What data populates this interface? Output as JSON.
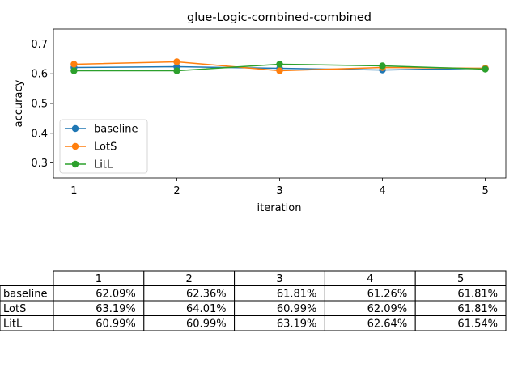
{
  "chart_data": {
    "type": "line",
    "title": "glue-Logic-combined-combined",
    "xlabel": "iteration",
    "ylabel": "accuracy",
    "x": [
      1,
      2,
      3,
      4,
      5
    ],
    "xticks": [
      "1",
      "2",
      "3",
      "4",
      "5"
    ],
    "ylim": [
      0.25,
      0.75
    ],
    "yticks": [
      "0.3",
      "0.4",
      "0.5",
      "0.6",
      "0.7"
    ],
    "grid": false,
    "legend_position": "center-left",
    "series": [
      {
        "name": "baseline",
        "color": "#1f77b4",
        "values": [
          0.6209,
          0.6236,
          0.6181,
          0.6126,
          0.6181
        ]
      },
      {
        "name": "LotS",
        "color": "#ff7f0e",
        "values": [
          0.6319,
          0.6401,
          0.6099,
          0.6209,
          0.6181
        ]
      },
      {
        "name": "LitL",
        "color": "#2ca02c",
        "values": [
          0.6099,
          0.6099,
          0.6319,
          0.6264,
          0.6154
        ]
      }
    ],
    "table": {
      "columns": [
        "1",
        "2",
        "3",
        "4",
        "5"
      ],
      "rows": [
        {
          "label": "baseline",
          "cells": [
            "62.09%",
            "62.36%",
            "61.81%",
            "61.26%",
            "61.81%"
          ]
        },
        {
          "label": "LotS",
          "cells": [
            "63.19%",
            "64.01%",
            "60.99%",
            "62.09%",
            "61.81%"
          ]
        },
        {
          "label": "LitL",
          "cells": [
            "60.99%",
            "60.99%",
            "63.19%",
            "62.64%",
            "61.54%"
          ]
        }
      ]
    }
  }
}
